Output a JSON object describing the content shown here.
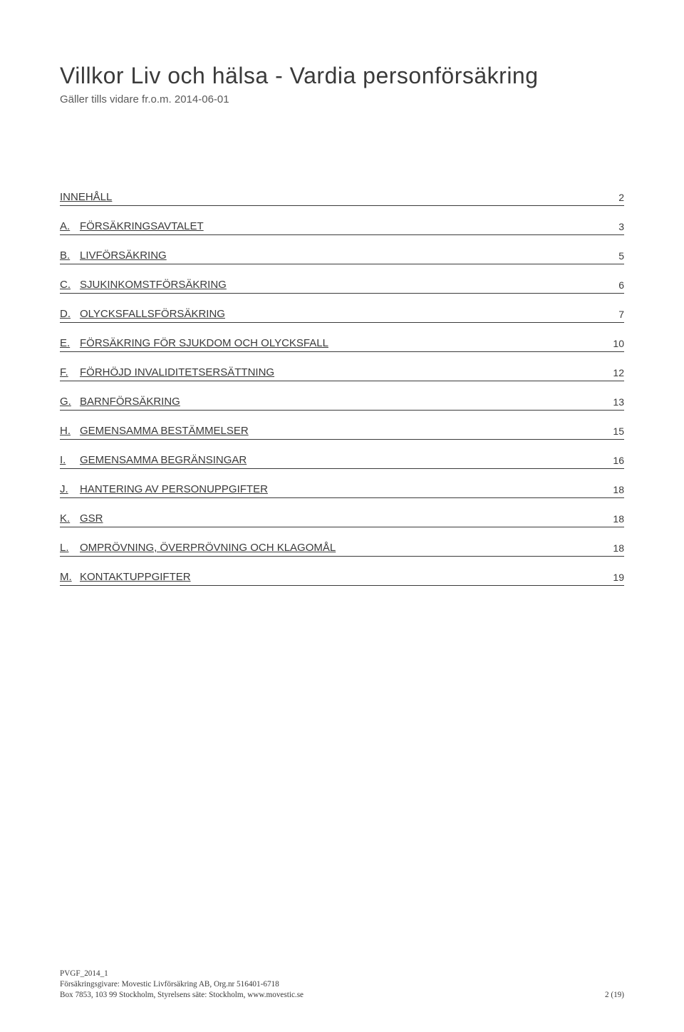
{
  "document": {
    "title": "Villkor Liv och hälsa - Vardia personförsäkring",
    "subtitle": "Gäller tills vidare fr.o.m. 2014-06-01",
    "toc_heading": {
      "label": "INNEHÅLL",
      "page": "2"
    },
    "toc": [
      {
        "letter": "A.",
        "label": "FÖRSÄKRINGSAVTALET",
        "page": "3"
      },
      {
        "letter": "B.",
        "label": "LIVFÖRSÄKRING",
        "page": "5"
      },
      {
        "letter": "C.",
        "label": "SJUKINKOMSTFÖRSÄKRING",
        "page": "6"
      },
      {
        "letter": "D.",
        "label": "OLYCKSFALLSFÖRSÄKRING",
        "page": "7"
      },
      {
        "letter": "E.",
        "label": "FÖRSÄKRING FÖR SJUKDOM OCH OLYCKSFALL",
        "page": "10"
      },
      {
        "letter": "F.",
        "label": "FÖRHÖJD INVALIDITETSERSÄTTNING",
        "page": "12"
      },
      {
        "letter": "G.",
        "label": "BARNFÖRSÄKRING",
        "page": "13"
      },
      {
        "letter": "H.",
        "label": "GEMENSAMMA BESTÄMMELSER",
        "page": "15"
      },
      {
        "letter": "I.",
        "label": "GEMENSAMMA BEGRÄNSINGAR",
        "page": "16"
      },
      {
        "letter": "J.",
        "label": "HANTERING AV PERSONUPPGIFTER",
        "page": "18"
      },
      {
        "letter": "K.",
        "label": "GSR",
        "page": "18"
      },
      {
        "letter": "L.",
        "label": "OMPRÖVNING, ÖVERPRÖVNING OCH KLAGOMÅL",
        "page": "18"
      },
      {
        "letter": "M.",
        "label": "KONTAKTUPPGIFTER",
        "page": "19"
      }
    ],
    "footer": {
      "line1": "PVGF_2014_1",
      "line2": "Försäkringsgivare: Movestic Livförsäkring AB, Org.nr 516401-6718",
      "line3": "Box 7853, 103 99 Stockholm, Styrelsens säte: Stockholm, www.movestic.se",
      "page_counter": "2 (19)"
    }
  },
  "style": {
    "background_color": "#ffffff",
    "text_color": "#3a3a3a",
    "title_fontsize": 32,
    "subtitle_fontsize": 15,
    "toc_fontsize": 15,
    "footer_fontsize": 11.2,
    "border_color": "#3a3a3a"
  }
}
